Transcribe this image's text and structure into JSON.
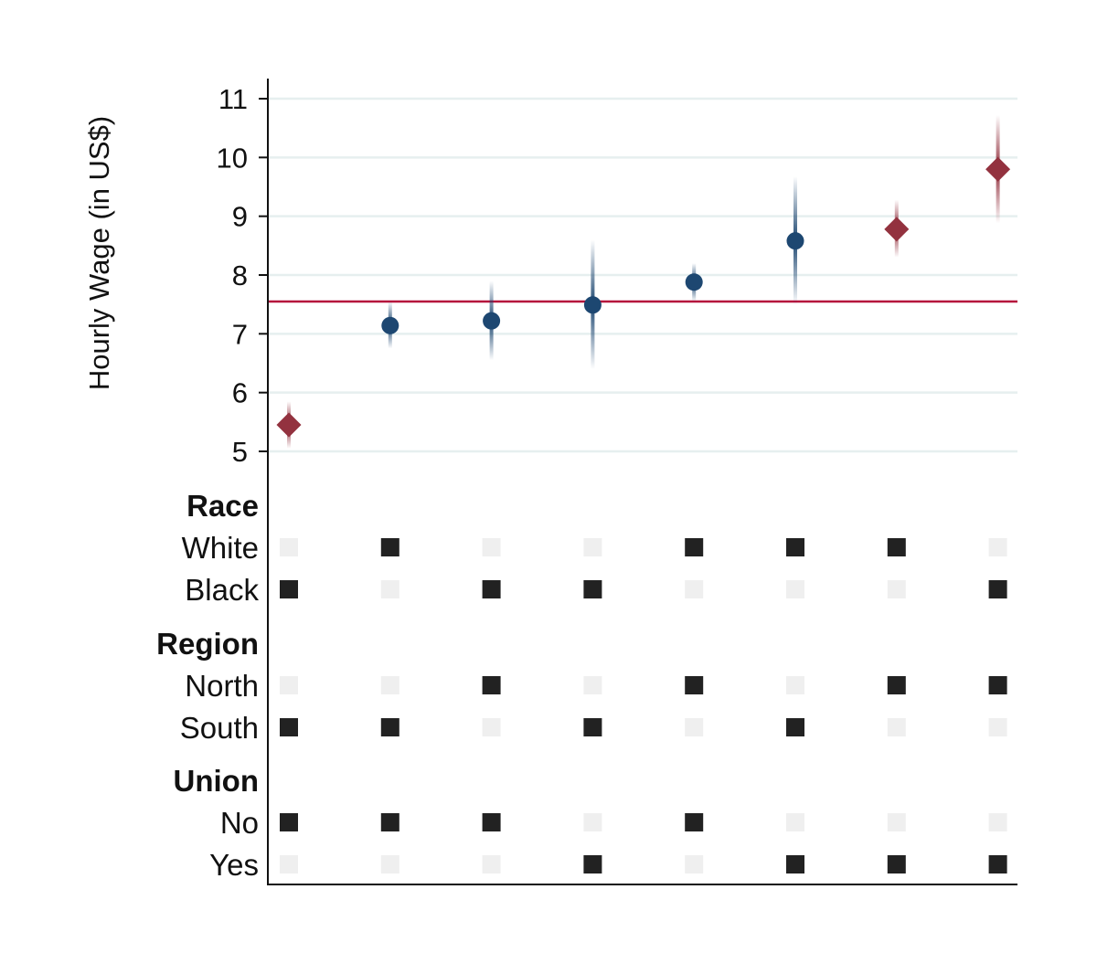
{
  "chart_data": {
    "type": "scatter",
    "title": "",
    "ylabel": "Hourly Wage (in US$)",
    "xlabel": "",
    "ylim": [
      5,
      11
    ],
    "yticks": [
      5,
      6,
      7,
      8,
      9,
      10,
      11
    ],
    "grid": true,
    "reference_line": {
      "y": 7.55,
      "color": "#b5103c"
    },
    "colors": {
      "significant": "#93323f",
      "normal": "#1d4771",
      "matrix_on": "#222222",
      "matrix_off": "#efefef",
      "grid": "#e6efef"
    },
    "points": [
      {
        "estimate": 5.45,
        "ci_low": 5.05,
        "ci_high": 5.85,
        "marker": "diamond"
      },
      {
        "estimate": 7.14,
        "ci_low": 6.75,
        "ci_high": 7.55,
        "marker": "circle"
      },
      {
        "estimate": 7.22,
        "ci_low": 6.55,
        "ci_high": 7.9,
        "marker": "circle"
      },
      {
        "estimate": 7.49,
        "ci_low": 6.4,
        "ci_high": 8.6,
        "marker": "circle"
      },
      {
        "estimate": 7.88,
        "ci_low": 7.55,
        "ci_high": 8.2,
        "marker": "circle"
      },
      {
        "estimate": 8.58,
        "ci_low": 7.5,
        "ci_high": 9.68,
        "marker": "circle"
      },
      {
        "estimate": 8.78,
        "ci_low": 8.3,
        "ci_high": 9.28,
        "marker": "diamond"
      },
      {
        "estimate": 9.8,
        "ci_low": 8.88,
        "ci_high": 10.72,
        "marker": "diamond"
      }
    ],
    "groups": [
      {
        "name": "Race",
        "rows": [
          {
            "label": "White",
            "indicators": [
              0,
              1,
              0,
              0,
              1,
              1,
              1,
              0
            ]
          },
          {
            "label": "Black",
            "indicators": [
              1,
              0,
              1,
              1,
              0,
              0,
              0,
              1
            ]
          }
        ]
      },
      {
        "name": "Region",
        "rows": [
          {
            "label": "North",
            "indicators": [
              0,
              0,
              1,
              0,
              1,
              0,
              1,
              1
            ]
          },
          {
            "label": "South",
            "indicators": [
              1,
              1,
              0,
              1,
              0,
              1,
              0,
              0
            ]
          }
        ]
      },
      {
        "name": "Union",
        "rows": [
          {
            "label": "No",
            "indicators": [
              1,
              1,
              1,
              0,
              1,
              0,
              0,
              0
            ]
          },
          {
            "label": "Yes",
            "indicators": [
              0,
              0,
              0,
              1,
              0,
              1,
              1,
              1
            ]
          }
        ]
      }
    ]
  }
}
